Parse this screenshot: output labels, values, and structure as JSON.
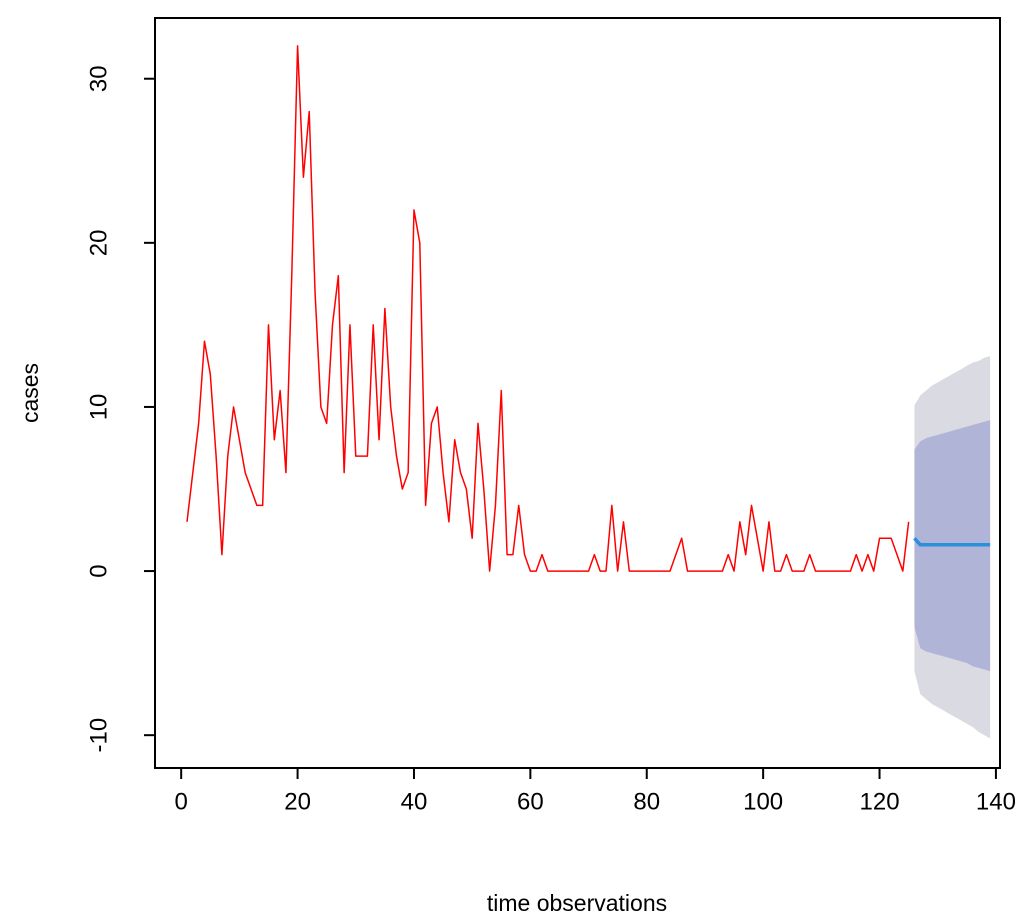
{
  "chart_data": {
    "type": "line",
    "xlabel": "time observations",
    "ylabel": "cases",
    "xlim": [
      -4.5,
      140.7
    ],
    "ylim": [
      -12.0,
      33.7
    ],
    "xticks": [
      0,
      20,
      40,
      60,
      80,
      100,
      120,
      140
    ],
    "yticks": [
      -10,
      0,
      10,
      20,
      30
    ],
    "bands": [
      {
        "color": "#dadae2",
        "x": [
          126,
          127,
          128,
          129,
          130,
          131,
          132,
          133,
          134,
          135,
          136,
          137,
          138,
          139
        ],
        "lower": [
          -6.1,
          -7.5,
          -7.8,
          -8.1,
          -8.3,
          -8.5,
          -8.7,
          -8.9,
          -9.1,
          -9.3,
          -9.5,
          -9.8,
          -10.0,
          -10.2
        ],
        "upper": [
          10.1,
          10.7,
          11.0,
          11.3,
          11.5,
          11.7,
          11.9,
          12.1,
          12.3,
          12.5,
          12.7,
          12.8,
          13.0,
          13.1
        ]
      },
      {
        "color": "#b0b5d7",
        "x": [
          126,
          127,
          128,
          129,
          130,
          131,
          132,
          133,
          134,
          135,
          136,
          137,
          138,
          139
        ],
        "lower": [
          -3.4,
          -4.7,
          -4.9,
          -5.0,
          -5.1,
          -5.2,
          -5.3,
          -5.4,
          -5.5,
          -5.6,
          -5.8,
          -5.9,
          -6.0,
          -6.1
        ],
        "upper": [
          7.4,
          7.9,
          8.1,
          8.2,
          8.3,
          8.4,
          8.5,
          8.6,
          8.7,
          8.8,
          8.9,
          9.0,
          9.1,
          9.2
        ]
      }
    ],
    "series": [
      {
        "color": "#ff0000",
        "width": 1.5,
        "x": [
          1,
          2,
          3,
          4,
          5,
          6,
          7,
          8,
          9,
          10,
          11,
          12,
          13,
          14,
          15,
          16,
          17,
          18,
          19,
          20,
          21,
          22,
          23,
          24,
          25,
          26,
          27,
          28,
          29,
          30,
          31,
          32,
          33,
          34,
          35,
          36,
          37,
          38,
          39,
          40,
          41,
          42,
          43,
          44,
          45,
          46,
          47,
          48,
          49,
          50,
          51,
          52,
          53,
          54,
          55,
          56,
          57,
          58,
          59,
          60,
          61,
          62,
          63,
          64,
          65,
          66,
          67,
          68,
          69,
          70,
          71,
          72,
          73,
          74,
          75,
          76,
          77,
          78,
          79,
          80,
          81,
          82,
          83,
          84,
          85,
          86,
          87,
          88,
          89,
          90,
          91,
          92,
          93,
          94,
          95,
          96,
          97,
          98,
          99,
          100,
          101,
          102,
          103,
          104,
          105,
          106,
          107,
          108,
          109,
          110,
          111,
          112,
          113,
          114,
          115,
          116,
          117,
          118,
          119,
          120,
          121,
          122,
          123,
          124,
          125
        ],
        "values": [
          3,
          6,
          9,
          14,
          12,
          7,
          1,
          7,
          10,
          8,
          6,
          5,
          4,
          4,
          15,
          8,
          11,
          6,
          18,
          32,
          24,
          28,
          17,
          10,
          9,
          15,
          18,
          6,
          15,
          7,
          7,
          7,
          15,
          8,
          16,
          10,
          7,
          5,
          6,
          22,
          20,
          4,
          9,
          10,
          6,
          3,
          8,
          6,
          5,
          2,
          9,
          5,
          0,
          4,
          11,
          1,
          1,
          4,
          1,
          0,
          0,
          1,
          0,
          0,
          0,
          0,
          0,
          0,
          0,
          0,
          1,
          0,
          0,
          4,
          0,
          3,
          0,
          0,
          0,
          0,
          0,
          0,
          0,
          0,
          1,
          2,
          0,
          0,
          0,
          0,
          0,
          0,
          0,
          1,
          0,
          3,
          1,
          4,
          2,
          0,
          3,
          0,
          0,
          1,
          0,
          0,
          0,
          1,
          0,
          0,
          0,
          0,
          0,
          0,
          0,
          1,
          0,
          1,
          0,
          2,
          2,
          2,
          1,
          0,
          3
        ]
      },
      {
        "color": "#2a8fdc",
        "width": 3.5,
        "x": [
          126,
          127,
          128,
          129,
          130,
          131,
          132,
          133,
          134,
          135,
          136,
          137,
          138,
          139
        ],
        "values": [
          2.0,
          1.6,
          1.6,
          1.6,
          1.6,
          1.6,
          1.6,
          1.6,
          1.6,
          1.6,
          1.6,
          1.6,
          1.6,
          1.6
        ]
      }
    ]
  }
}
